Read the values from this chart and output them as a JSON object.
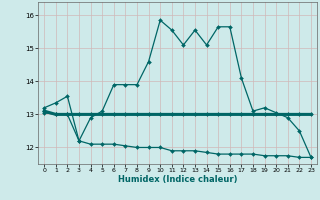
{
  "xlabel": "Humidex (Indice chaleur)",
  "background_color": "#ceeaea",
  "grid_color": "#b8d8d8",
  "line_color": "#006666",
  "xlim": [
    -0.5,
    23.5
  ],
  "ylim": [
    11.5,
    16.4
  ],
  "yticks": [
    12,
    13,
    14,
    15,
    16
  ],
  "xticks": [
    0,
    1,
    2,
    3,
    4,
    5,
    6,
    7,
    8,
    9,
    10,
    11,
    12,
    13,
    14,
    15,
    16,
    17,
    18,
    19,
    20,
    21,
    22,
    23
  ],
  "series1_x": [
    0,
    1,
    2,
    3,
    4,
    5,
    6,
    7,
    8,
    9,
    10,
    11,
    12,
    13,
    14,
    15,
    16,
    17,
    18,
    19,
    20,
    21,
    22,
    23
  ],
  "series1_y": [
    13.2,
    13.35,
    13.55,
    12.2,
    12.9,
    13.1,
    13.9,
    13.9,
    13.9,
    14.6,
    15.85,
    15.55,
    15.1,
    15.55,
    15.1,
    15.65,
    15.65,
    14.1,
    13.1,
    13.2,
    13.05,
    12.9,
    12.5,
    11.7
  ],
  "series2_x": [
    0,
    1,
    2,
    3,
    4,
    5,
    6,
    7,
    8,
    9,
    10,
    11,
    12,
    13,
    14,
    15,
    16,
    17,
    18,
    19,
    20,
    21,
    22,
    23
  ],
  "series2_y": [
    13.1,
    13.0,
    13.0,
    13.0,
    13.0,
    13.0,
    13.0,
    13.0,
    13.0,
    13.0,
    13.0,
    13.0,
    13.0,
    13.0,
    13.0,
    13.0,
    13.0,
    13.0,
    13.0,
    13.0,
    13.0,
    13.0,
    13.0,
    13.0
  ],
  "series3_x": [
    0,
    1,
    2,
    3,
    4,
    5,
    6,
    7,
    8,
    9,
    10,
    11,
    12,
    13,
    14,
    15,
    16,
    17,
    18,
    19,
    20,
    21,
    22,
    23
  ],
  "series3_y": [
    13.05,
    13.0,
    13.0,
    12.2,
    12.1,
    12.1,
    12.1,
    12.05,
    12.0,
    12.0,
    12.0,
    11.9,
    11.9,
    11.9,
    11.85,
    11.8,
    11.8,
    11.8,
    11.8,
    11.75,
    11.75,
    11.75,
    11.7,
    11.7
  ]
}
